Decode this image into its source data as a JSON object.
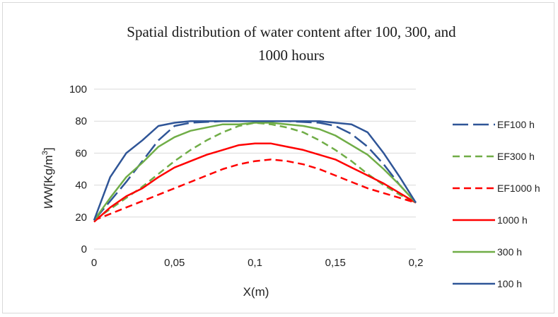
{
  "chart_data": {
    "type": "line",
    "title_line1": "Spatial distribution  of water content after 100, 300, and",
    "title_line2": "1000 hours",
    "xlabel": "X(m)",
    "ylabel_main": "W[Kg/m",
    "ylabel_sup": "3",
    "ylabel_end": "]",
    "xlim": [
      0,
      0.2
    ],
    "ylim": [
      0,
      100
    ],
    "x_ticks": [
      0,
      0.05,
      0.1,
      0.15,
      0.2
    ],
    "x_tick_labels": [
      "0",
      "0,05",
      "0,1",
      "0,15",
      "0,2"
    ],
    "y_ticks": [
      0,
      20,
      40,
      60,
      80,
      100
    ],
    "y_tick_labels": [
      "0",
      "20",
      "40",
      "60",
      "80",
      "100"
    ],
    "grid": "horizontal",
    "legend_position": "right",
    "series": [
      {
        "name": "EF100 h",
        "color": "#2f5597",
        "dash": "dashed-long",
        "x": [
          0,
          0.01,
          0.02,
          0.03,
          0.04,
          0.05,
          0.06,
          0.08,
          0.1,
          0.12,
          0.14,
          0.15,
          0.16,
          0.17,
          0.18,
          0.19,
          0.2
        ],
        "y": [
          18,
          30,
          42,
          55,
          68,
          77,
          79,
          80,
          80,
          80,
          79,
          77,
          72,
          64,
          53,
          40,
          29
        ]
      },
      {
        "name": "EF300 h",
        "color": "#70ad47",
        "dash": "dashed",
        "x": [
          0,
          0.01,
          0.02,
          0.03,
          0.04,
          0.05,
          0.06,
          0.07,
          0.08,
          0.09,
          0.1,
          0.11,
          0.12,
          0.13,
          0.14,
          0.15,
          0.16,
          0.17,
          0.18,
          0.19,
          0.2
        ],
        "y": [
          18,
          25,
          32,
          39,
          47,
          55,
          62,
          68,
          73,
          77,
          79,
          78,
          76,
          73,
          68,
          62,
          55,
          47,
          40,
          34,
          29
        ]
      },
      {
        "name": "EF1000 h",
        "color": "#ff0000",
        "dash": "dashed",
        "x": [
          0,
          0.01,
          0.02,
          0.03,
          0.04,
          0.05,
          0.06,
          0.07,
          0.08,
          0.09,
          0.1,
          0.11,
          0.12,
          0.13,
          0.14,
          0.15,
          0.16,
          0.17,
          0.18,
          0.19,
          0.2
        ],
        "y": [
          18,
          22,
          26,
          30,
          34,
          38,
          42,
          46,
          50,
          53,
          55,
          56,
          55,
          53,
          50,
          46,
          42,
          38,
          35,
          32,
          29
        ]
      },
      {
        "name": "1000 h",
        "color": "#ff0000",
        "dash": "solid",
        "x": [
          0,
          0.01,
          0.02,
          0.03,
          0.04,
          0.05,
          0.06,
          0.07,
          0.08,
          0.09,
          0.1,
          0.11,
          0.12,
          0.13,
          0.14,
          0.15,
          0.16,
          0.17,
          0.18,
          0.19,
          0.2
        ],
        "y": [
          17,
          26,
          33,
          38,
          45,
          51,
          55,
          59,
          62,
          65,
          66,
          66,
          64,
          62,
          59,
          56,
          51,
          46,
          41,
          35,
          29
        ]
      },
      {
        "name": "300 h",
        "color": "#70ad47",
        "dash": "solid",
        "x": [
          0,
          0.01,
          0.02,
          0.03,
          0.04,
          0.05,
          0.06,
          0.07,
          0.08,
          0.09,
          0.1,
          0.11,
          0.12,
          0.13,
          0.14,
          0.15,
          0.16,
          0.17,
          0.18,
          0.19,
          0.2
        ],
        "y": [
          18,
          32,
          45,
          54,
          64,
          70,
          74,
          76,
          78,
          78,
          79,
          79,
          78,
          77,
          75,
          71,
          65,
          59,
          50,
          40,
          29
        ]
      },
      {
        "name": "100 h",
        "color": "#2f5597",
        "dash": "solid",
        "x": [
          0,
          0.01,
          0.02,
          0.03,
          0.04,
          0.05,
          0.06,
          0.08,
          0.1,
          0.12,
          0.14,
          0.15,
          0.16,
          0.17,
          0.18,
          0.19,
          0.2
        ],
        "y": [
          18,
          45,
          60,
          68,
          77,
          79,
          80,
          80,
          80,
          80,
          80,
          79,
          78,
          73,
          60,
          45,
          29
        ]
      }
    ]
  }
}
